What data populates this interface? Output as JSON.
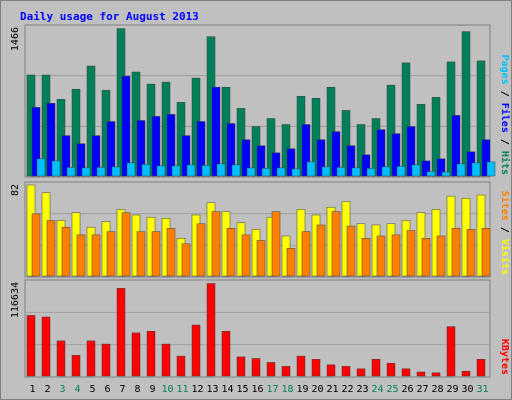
{
  "chart_data": {
    "type": "bar",
    "title": "Daily usage for August 2013",
    "x": [
      "1",
      "2",
      "3",
      "4",
      "5",
      "6",
      "7",
      "8",
      "9",
      "10",
      "11",
      "12",
      "13",
      "14",
      "15",
      "16",
      "17",
      "18",
      "19",
      "20",
      "21",
      "22",
      "23",
      "24",
      "25",
      "26",
      "27",
      "28",
      "29",
      "30",
      "31"
    ],
    "weekend_days": [
      "3",
      "4",
      "10",
      "11",
      "17",
      "18",
      "24",
      "25",
      "31"
    ],
    "panels": [
      {
        "id": "hits",
        "max_label": "1466",
        "ylim": [
          0,
          1466
        ],
        "legend": [
          "Pages",
          "Files",
          "Hits"
        ],
        "series": [
          {
            "name": "Hits",
            "color": "#00805a",
            "values": [
              1000,
              1000,
              760,
              860,
              1090,
              850,
              1460,
              1030,
              910,
              930,
              730,
              970,
              1380,
              880,
              670,
              490,
              570,
              510,
              790,
              770,
              880,
              650,
              510,
              570,
              900,
              1120,
              710,
              780,
              1130,
              1430,
              1140
            ]
          },
          {
            "name": "Files",
            "color": "#0000ff",
            "values": [
              680,
              720,
              400,
              320,
              400,
              540,
              990,
              550,
              590,
              610,
              400,
              540,
              880,
              520,
              360,
              300,
              230,
              270,
              510,
              360,
              440,
              300,
              210,
              460,
              420,
              490,
              150,
              170,
              600,
              240,
              360
            ]
          },
          {
            "name": "Pages",
            "color": "#00bfff",
            "values": [
              170,
              150,
              85,
              80,
              85,
              90,
              130,
              115,
              100,
              100,
              110,
              105,
              120,
              110,
              80,
              75,
              80,
              70,
              140,
              90,
              85,
              80,
              75,
              90,
              95,
              110,
              45,
              40,
              120,
              130,
              140
            ]
          }
        ]
      },
      {
        "id": "visits",
        "max_label": "82",
        "ylim": [
          0,
          82
        ],
        "legend": [
          "Sites",
          "Visits"
        ],
        "series": [
          {
            "name": "Visits",
            "color": "#ffff00",
            "values": [
              82,
              75,
              50,
              57,
              44,
              49,
              60,
              55,
              53,
              52,
              34,
              55,
              66,
              58,
              48,
              42,
              53,
              36,
              60,
              55,
              62,
              67,
              47,
              46,
              47,
              50,
              57,
              60,
              72,
              70,
              73
            ]
          },
          {
            "name": "Sites",
            "color": "#ff8000",
            "values": [
              56,
              50,
              44,
              37,
              37,
              40,
              57,
              40,
              40,
              43,
              29,
              47,
              58,
              43,
              37,
              32,
              58,
              25,
              40,
              46,
              58,
              45,
              34,
              36,
              37,
              41,
              34,
              36,
              43,
              42,
              43
            ]
          }
        ]
      },
      {
        "id": "kbytes",
        "max_label": "116634",
        "ylim": [
          0,
          116634
        ],
        "legend": [
          "KBytes"
        ],
        "series": [
          {
            "name": "KBytes",
            "color": "#ff0000",
            "values": [
              76000,
              74000,
              44000,
              26000,
              44000,
              40000,
              110000,
              54000,
              56000,
              40000,
              25000,
              64000,
              116000,
              56000,
              24000,
              22000,
              17000,
              12000,
              25000,
              21000,
              14000,
              12000,
              9000,
              21000,
              16000,
              9000,
              5000,
              4000,
              62000,
              6000,
              21000
            ]
          }
        ]
      }
    ]
  }
}
